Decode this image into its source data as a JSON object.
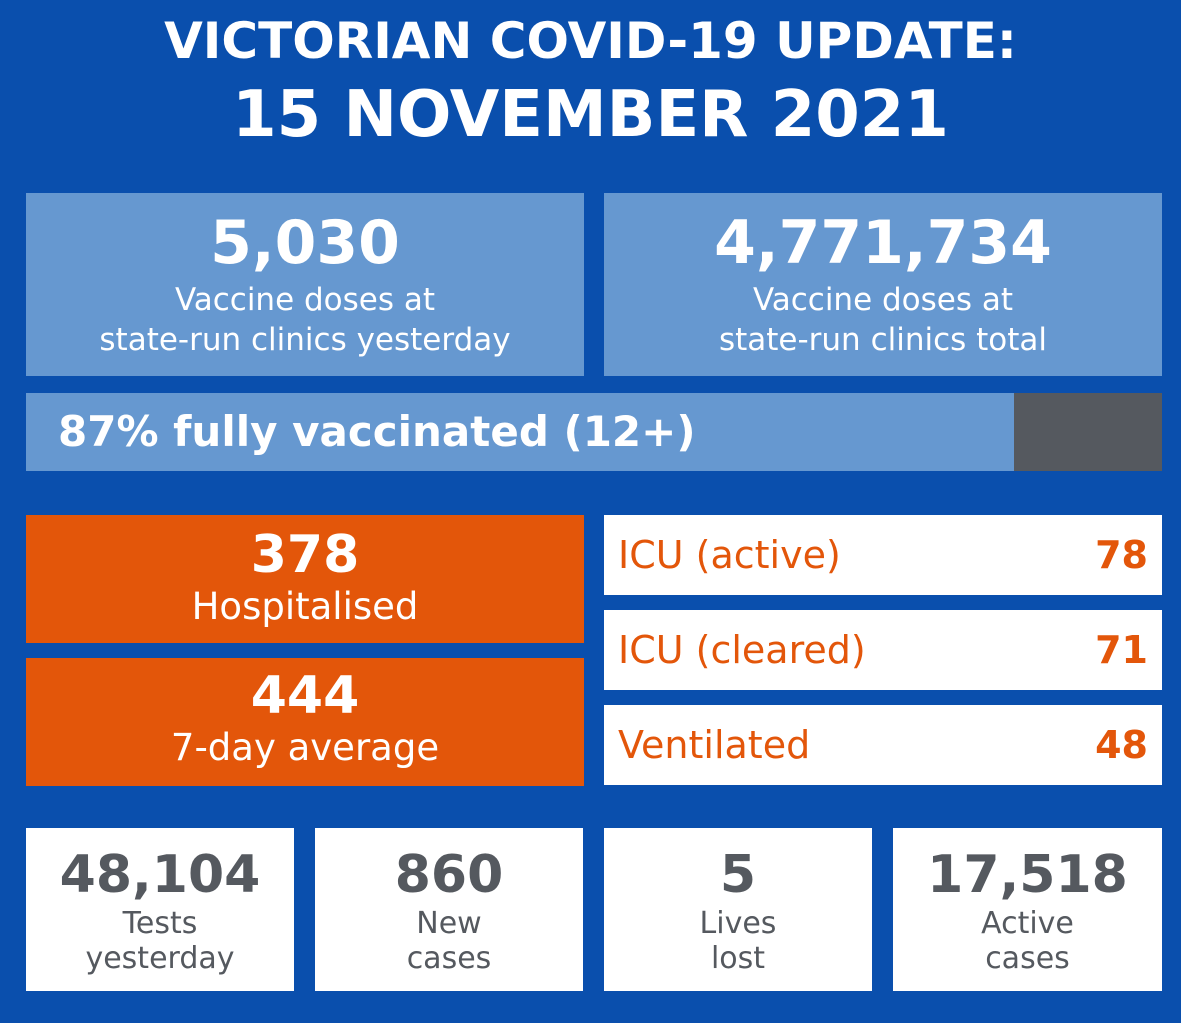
{
  "header": {
    "title_line1": "VICTORIAN COVID-19 UPDATE:",
    "title_line2": "15 NOVEMBER 2021"
  },
  "vaccines": [
    {
      "value": "5,030",
      "label_line1": "Vaccine doses at",
      "label_line2": "state-run clinics yesterday"
    },
    {
      "value": "4,771,734",
      "label_line1": "Vaccine doses at",
      "label_line2": "state-run clinics total"
    }
  ],
  "vaccination_progress": {
    "text": "87% fully vaccinated (12+)",
    "percent": 87
  },
  "hospital": [
    {
      "value": "378",
      "label": "Hospitalised"
    },
    {
      "value": "444",
      "label": "7-day average"
    }
  ],
  "icu": [
    {
      "label": "ICU (active)",
      "value": "78"
    },
    {
      "label": "ICU (cleared)",
      "value": "71"
    },
    {
      "label": "Ventilated",
      "value": "48"
    }
  ],
  "stats": [
    {
      "value": "48,104",
      "label_line1": "Tests",
      "label_line2": "yesterday"
    },
    {
      "value": "860",
      "label_line1": "New",
      "label_line2": "cases"
    },
    {
      "value": "5",
      "label_line1": "Lives",
      "label_line2": "lost"
    },
    {
      "value": "17,518",
      "label_line1": "Active",
      "label_line2": "cases"
    }
  ],
  "colors": {
    "background": "#0a4fad",
    "light_blue": "#6698d0",
    "orange": "#e3560a",
    "grey": "#55595f",
    "white": "#ffffff"
  }
}
